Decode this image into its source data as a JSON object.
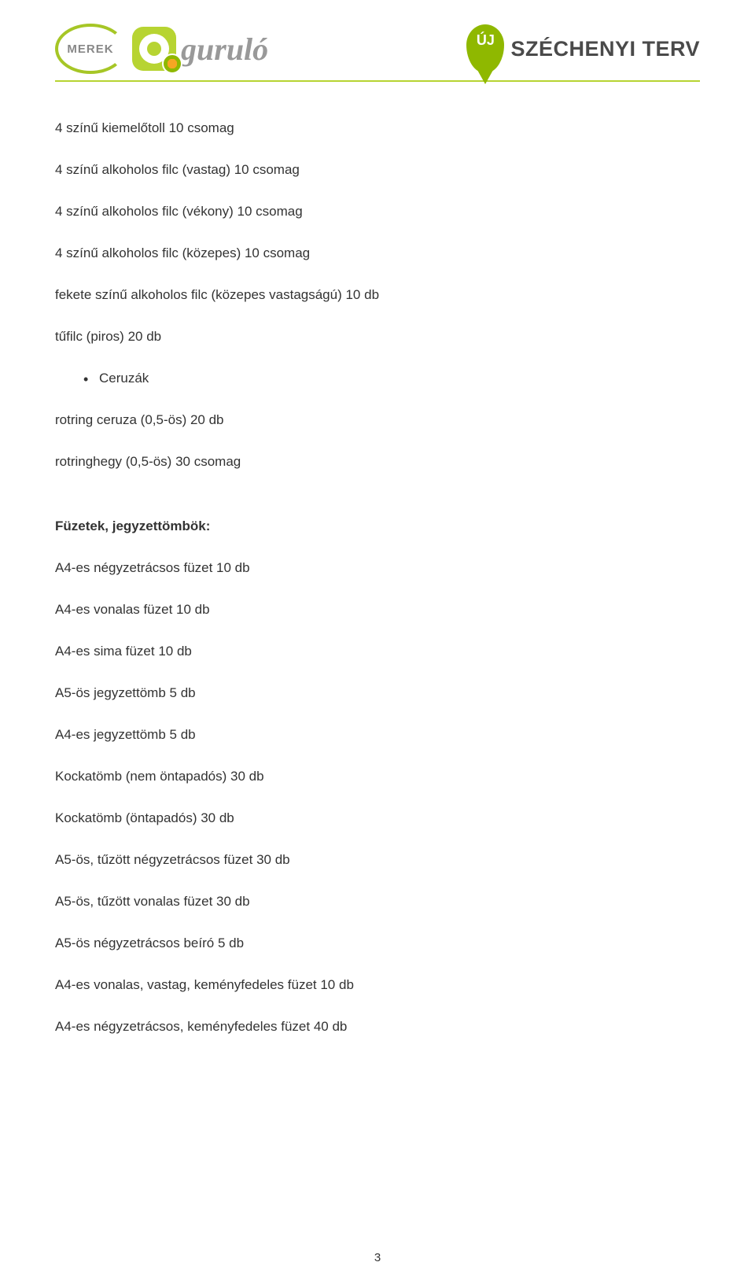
{
  "colors": {
    "divider": "#b7d432",
    "merek_border": "#a6c626",
    "text": "#333333"
  },
  "header": {
    "merek_label": "MEREK",
    "gurulo_label": "guruló",
    "uj_label": "ÚJ",
    "szechenyi_label": "SZÉCHENYI TERV"
  },
  "items_top": [
    "4 színű kiemelőtoll 10 csomag",
    "4 színű alkoholos filc (vastag) 10 csomag",
    "4 színű alkoholos filc (vékony) 10 csomag",
    "4 színű alkoholos filc (közepes) 10 csomag",
    "fekete színű alkoholos filc (közepes vastagságú) 10 db",
    "tűfilc (piros) 20 db"
  ],
  "bullet_item": "Ceruzák",
  "items_after_bullet": [
    "rotring ceruza (0,5-ös) 20 db",
    "rotringhegy (0,5-ös) 30 csomag"
  ],
  "section_title": "Füzetek, jegyzettömbök:",
  "items_section": [
    "A4-es négyzetrácsos füzet 10 db",
    "A4-es vonalas füzet 10 db",
    "A4-es sima füzet 10 db",
    "A5-ös jegyzettömb 5 db",
    "A4-es jegyzettömb 5 db",
    "Kockatömb (nem öntapadós) 30 db",
    "Kockatömb (öntapadós) 30 db",
    "A5-ös, tűzött négyzetrácsos füzet 30 db",
    "A5-ös, tűzött vonalas füzet 30 db",
    "A5-ös négyzetrácsos beíró 5 db",
    "A4-es vonalas, vastag, keményfedeles füzet 10 db",
    "A4-es négyzetrácsos, keményfedeles füzet 40 db"
  ],
  "page_number": "3"
}
